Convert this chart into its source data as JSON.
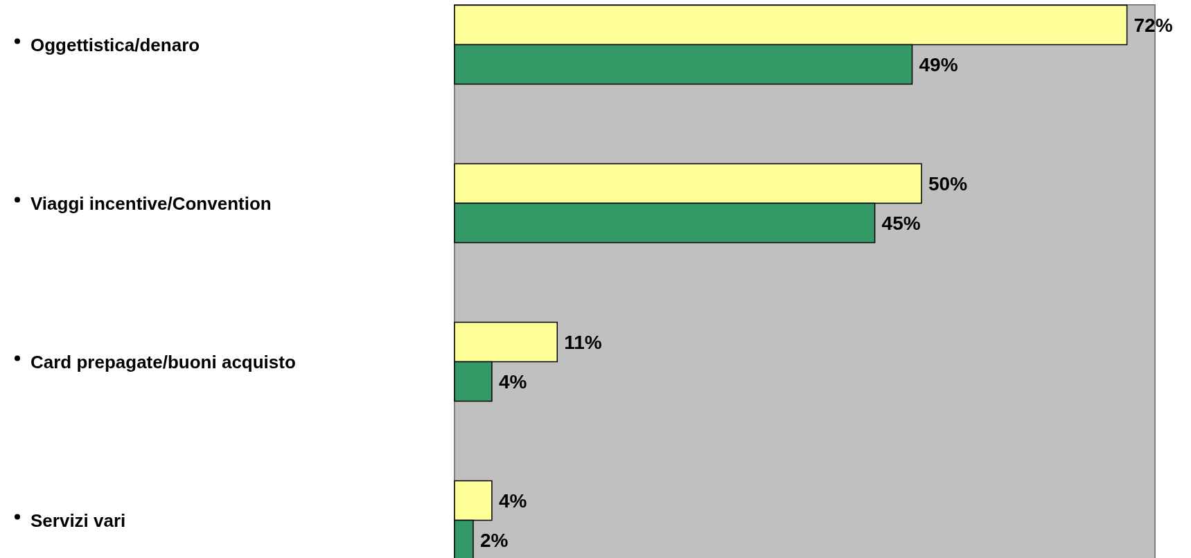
{
  "chart_data": {
    "type": "bar",
    "orientation": "horizontal",
    "categories": [
      "Oggettistica/denaro",
      "Viaggi incentive/Convention",
      "Card prepagate/buoni acquisto",
      "Servizi vari"
    ],
    "series": [
      {
        "color": "#ffff99",
        "values": [
          72,
          50,
          11,
          4
        ],
        "value_labels": [
          "72%",
          "50%",
          "11%",
          "4%"
        ]
      },
      {
        "color": "#339966",
        "values": [
          49,
          45,
          4,
          2
        ],
        "value_labels": [
          "49%",
          "45%",
          "4%",
          "2%"
        ]
      }
    ],
    "xlim": [
      0,
      75
    ],
    "tick_labels": "y"
  }
}
